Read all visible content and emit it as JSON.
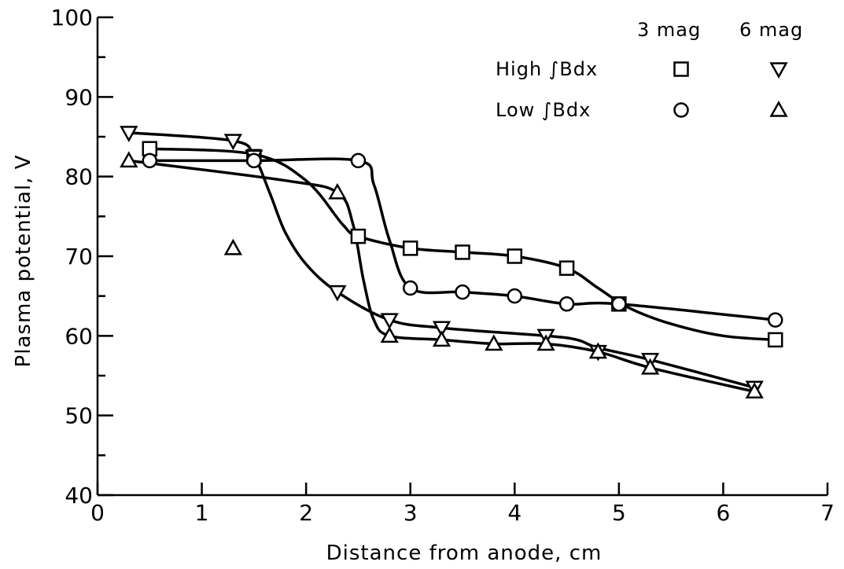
{
  "chart_data": {
    "type": "line",
    "title": "",
    "xlabel": "Distance from anode, cm",
    "ylabel": "Plasma potential, V",
    "xlim": [
      0,
      7
    ],
    "ylim": [
      40,
      100
    ],
    "x_ticks": [
      0,
      1,
      2,
      3,
      4,
      5,
      6,
      7
    ],
    "y_ticks": [
      40,
      50,
      60,
      70,
      80,
      90,
      100
    ],
    "grid": false,
    "legend": {
      "placement": "top-right",
      "column_headers": [
        "3 mag",
        "6 mag"
      ],
      "row_labels": [
        "High ∫Bdx",
        "Low ∫Bdx"
      ]
    },
    "series": [
      {
        "legend_row": "High ∫Bdx",
        "legend_column": "3 mag",
        "marker": "square",
        "x": [
          0.5,
          1.5,
          2.5,
          3.0,
          3.5,
          4.0,
          4.5,
          5.0,
          6.5
        ],
        "y": [
          83.5,
          82.5,
          72.5,
          71.0,
          70.5,
          70.0,
          68.5,
          64.0,
          59.5
        ],
        "curve": [
          [
            0.5,
            83.5
          ],
          [
            1.5,
            82.8
          ],
          [
            2.0,
            79.5
          ],
          [
            2.35,
            74.0
          ],
          [
            2.5,
            72.5
          ],
          [
            3.0,
            71.0
          ],
          [
            3.5,
            70.5
          ],
          [
            4.0,
            70.0
          ],
          [
            4.5,
            68.5
          ],
          [
            4.8,
            66.0
          ],
          [
            5.1,
            63.5
          ],
          [
            5.5,
            61.5
          ],
          [
            6.0,
            60.0
          ],
          [
            6.5,
            59.5
          ]
        ]
      },
      {
        "legend_row": "High ∫Bdx",
        "legend_column": "6 mag",
        "marker": "triangle-down",
        "x": [
          0.3,
          1.3,
          1.5,
          2.3,
          2.8,
          3.3,
          4.3,
          4.8,
          5.3,
          6.3
        ],
        "y": [
          85.5,
          84.5,
          82.5,
          65.5,
          62.0,
          61.0,
          60.0,
          58.0,
          57.0,
          53.5
        ],
        "curve": [
          [
            0.3,
            85.5
          ],
          [
            1.3,
            84.5
          ],
          [
            1.5,
            82.5
          ],
          [
            1.65,
            78.0
          ],
          [
            1.8,
            73.0
          ],
          [
            2.0,
            69.0
          ],
          [
            2.3,
            65.5
          ],
          [
            2.8,
            62.0
          ],
          [
            3.3,
            61.0
          ],
          [
            4.3,
            60.0
          ],
          [
            4.6,
            59.5
          ],
          [
            4.8,
            58.5
          ],
          [
            5.3,
            57.0
          ],
          [
            6.3,
            53.5
          ]
        ]
      },
      {
        "legend_row": "Low ∫Bdx",
        "legend_column": "3 mag",
        "marker": "circle",
        "x": [
          0.5,
          1.5,
          2.5,
          3.0,
          3.5,
          4.0,
          4.5,
          5.0,
          6.5
        ],
        "y": [
          82.0,
          82.0,
          82.0,
          66.0,
          65.5,
          65.0,
          64.0,
          64.0,
          62.0
        ],
        "curve": [
          [
            0.5,
            82.0
          ],
          [
            1.5,
            82.0
          ],
          [
            2.5,
            82.0
          ],
          [
            2.65,
            79.0
          ],
          [
            2.8,
            72.0
          ],
          [
            3.0,
            66.0
          ],
          [
            3.5,
            65.5
          ],
          [
            4.0,
            65.0
          ],
          [
            4.5,
            64.0
          ],
          [
            5.0,
            64.0
          ],
          [
            6.5,
            62.0
          ]
        ]
      },
      {
        "legend_row": "Low ∫Bdx",
        "legend_column": "6 mag",
        "marker": "triangle-up",
        "x": [
          0.3,
          1.3,
          2.3,
          2.8,
          3.3,
          3.8,
          4.3,
          4.8,
          5.3,
          6.3
        ],
        "y": [
          82.0,
          71.0,
          78.0,
          60.0,
          59.5,
          59.0,
          59.0,
          58.0,
          56.0,
          53.0
        ],
        "curve": [
          [
            0.3,
            82.0
          ],
          [
            1.8,
            79.5
          ],
          [
            2.3,
            78.0
          ],
          [
            2.45,
            74.0
          ],
          [
            2.55,
            67.0
          ],
          [
            2.65,
            62.0
          ],
          [
            2.8,
            60.0
          ],
          [
            3.3,
            59.5
          ],
          [
            3.8,
            59.0
          ],
          [
            4.3,
            59.0
          ],
          [
            4.8,
            58.0
          ],
          [
            5.3,
            56.0
          ],
          [
            6.3,
            53.0
          ]
        ]
      }
    ]
  }
}
